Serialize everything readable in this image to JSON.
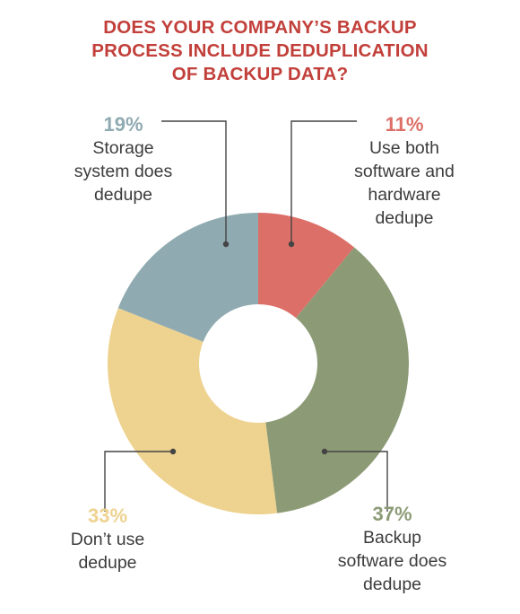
{
  "colors": {
    "title": "#c2403b",
    "leader": "#444444"
  },
  "chart_data": {
    "type": "pie",
    "variant": "donut",
    "title_lines": [
      "DOES YOUR COMPANY’S BACKUP",
      "PROCESS INCLUDE DEDUPLICATION",
      "OF BACKUP DATA?"
    ],
    "legend": "none",
    "slices": [
      {
        "label": "Use both software and hardware dedupe",
        "label_lines": [
          "Use both",
          "software and",
          "hardware",
          "dedupe"
        ],
        "value": 11,
        "value_label": "11%",
        "color": "#dc7068"
      },
      {
        "label": "Backup software does dedupe",
        "label_lines": [
          "Backup",
          "software does",
          "dedupe"
        ],
        "value": 37,
        "value_label": "37%",
        "color": "#8c9b76"
      },
      {
        "label": "Don’t use dedupe",
        "label_lines": [
          "Don’t use",
          "dedupe"
        ],
        "value": 33,
        "value_label": "33%",
        "color": "#eed28f"
      },
      {
        "label": "Storage system does dedupe",
        "label_lines": [
          "Storage",
          "system does",
          "dedupe"
        ],
        "value": 19,
        "value_label": "19%",
        "color": "#8faab1"
      }
    ]
  }
}
